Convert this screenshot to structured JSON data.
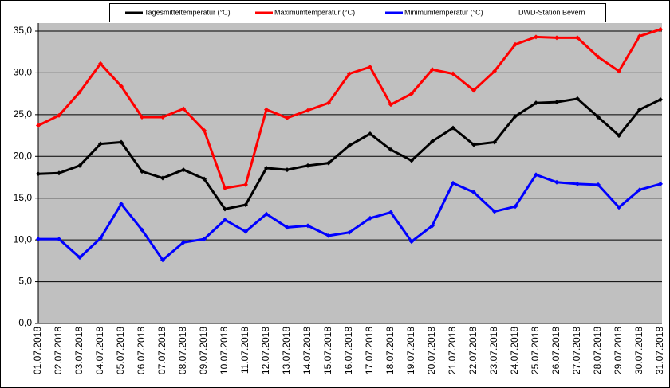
{
  "chart_data": {
    "type": "line",
    "annotation": "DWD-Station Bevern",
    "categories": [
      "01.07.2018",
      "02.07.2018",
      "03.07.2018",
      "04.07.2018",
      "05.07.2018",
      "06.07.2018",
      "07.07.2018",
      "08.07.2018",
      "09.07.2018",
      "10.07.2018",
      "11.07.2018",
      "12.07.2018",
      "13.07.2018",
      "14.07.2018",
      "15.07.2018",
      "16.07.2018",
      "17.07.2018",
      "18.07.2018",
      "19.07.2018",
      "20.07.2018",
      "21.07.2018",
      "22.07.2018",
      "23.07.2018",
      "24.07.2018",
      "25.07.2018",
      "26.07.2018",
      "27.07.2018",
      "28.07.2018",
      "29.07.2018",
      "30.07.2018",
      "31.07.2018"
    ],
    "series": [
      {
        "name": "Tagesmitteltemperatur (°C)",
        "color": "#000000",
        "values": [
          17.9,
          18.0,
          18.9,
          21.5,
          21.7,
          18.2,
          17.4,
          18.4,
          17.3,
          13.7,
          14.2,
          18.6,
          18.4,
          18.9,
          19.2,
          21.3,
          22.7,
          20.8,
          19.5,
          21.8,
          23.4,
          21.4,
          21.7,
          24.8,
          26.4,
          26.5,
          26.9,
          24.7,
          22.5,
          25.6,
          26.8
        ]
      },
      {
        "name": "Maximumtemperatur (°C)",
        "color": "#ff0000",
        "values": [
          23.7,
          24.9,
          27.7,
          31.1,
          28.4,
          24.7,
          24.7,
          25.7,
          23.1,
          16.2,
          16.6,
          25.6,
          24.6,
          25.5,
          26.4,
          29.9,
          30.7,
          26.2,
          27.5,
          30.4,
          29.9,
          27.9,
          30.2,
          33.4,
          34.3,
          34.2,
          34.2,
          31.9,
          30.2,
          34.4,
          35.2
        ]
      },
      {
        "name": "Minimumtemperatur (°C)",
        "color": "#0000ff",
        "values": [
          10.1,
          10.1,
          7.9,
          10.2,
          14.3,
          11.2,
          7.6,
          9.7,
          10.1,
          12.4,
          11.0,
          13.1,
          11.5,
          11.7,
          10.5,
          10.9,
          12.6,
          13.3,
          9.8,
          11.7,
          16.8,
          15.7,
          13.4,
          14.0,
          17.8,
          16.9,
          16.7,
          16.6,
          13.9,
          16.0,
          16.7
        ]
      }
    ],
    "ylim": [
      0,
      35
    ],
    "yticks": [
      {
        "value": 0,
        "label": "0,0"
      },
      {
        "value": 5,
        "label": "5,0"
      },
      {
        "value": 10,
        "label": "10,0"
      },
      {
        "value": 15,
        "label": "15,0"
      },
      {
        "value": 20,
        "label": "20,0"
      },
      {
        "value": 25,
        "label": "25,0"
      },
      {
        "value": 30,
        "label": "30,0"
      },
      {
        "value": 35,
        "label": "35,0"
      }
    ],
    "grid": true
  }
}
